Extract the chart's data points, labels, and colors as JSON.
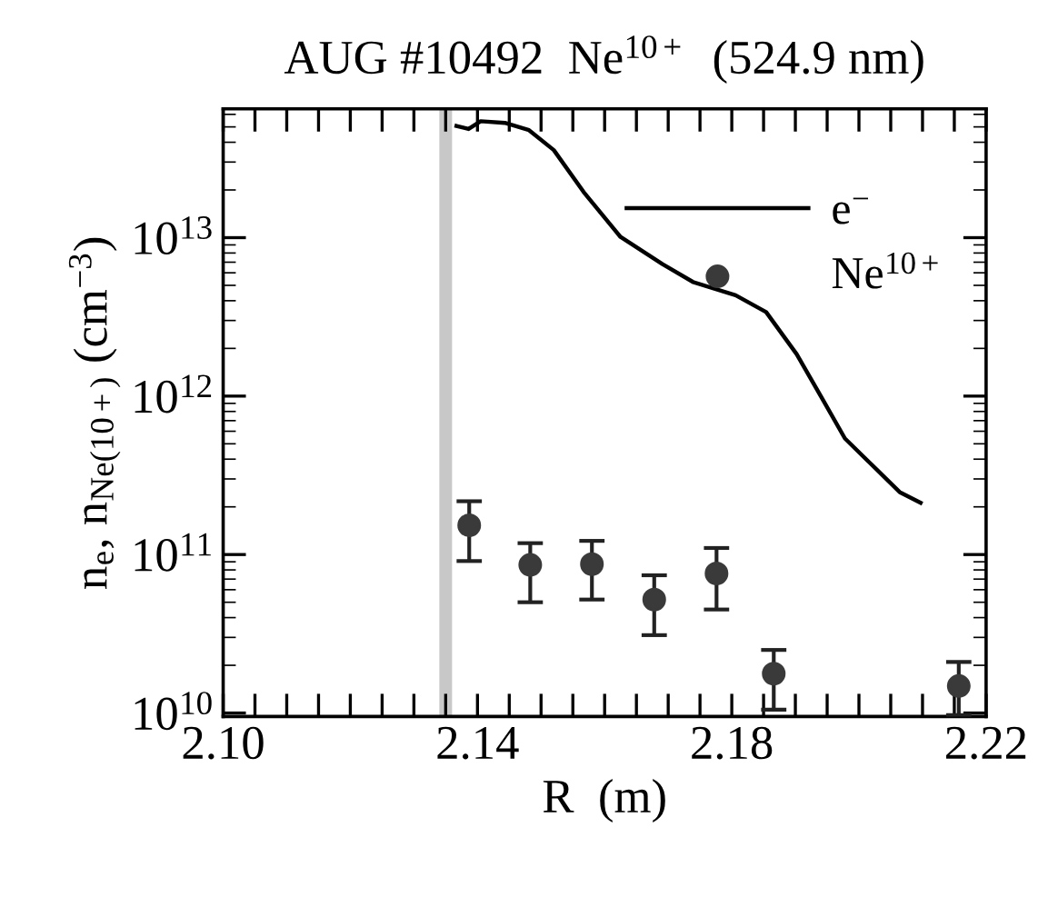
{
  "chart_data": {
    "type": "line",
    "title": "AUG #10492  Ne$^{10+}$  (524.9 nm)",
    "xlabel": "R  (m)",
    "ylabel": "n$_{e}$, n$_{Ne(10+)}$ (cm$^{−3}$)",
    "log": "y",
    "xlim": [
      2.1,
      2.22
    ],
    "ylim": [
      9500000000.0,
      65000000000000.0
    ],
    "xticks": [
      {
        "value": 2.1,
        "label": "2.10"
      },
      {
        "value": 2.105,
        "label": null
      },
      {
        "value": 2.11,
        "label": null
      },
      {
        "value": 2.115,
        "label": null
      },
      {
        "value": 2.12,
        "label": null
      },
      {
        "value": 2.125,
        "label": null
      },
      {
        "value": 2.13,
        "label": null
      },
      {
        "value": 2.135,
        "label": null
      },
      {
        "value": 2.14,
        "label": "2.14"
      },
      {
        "value": 2.145,
        "label": null
      },
      {
        "value": 2.15,
        "label": null
      },
      {
        "value": 2.155,
        "label": null
      },
      {
        "value": 2.16,
        "label": null
      },
      {
        "value": 2.165,
        "label": null
      },
      {
        "value": 2.17,
        "label": null
      },
      {
        "value": 2.175,
        "label": null
      },
      {
        "value": 2.18,
        "label": "2.18"
      },
      {
        "value": 2.185,
        "label": null
      },
      {
        "value": 2.19,
        "label": null
      },
      {
        "value": 2.195,
        "label": null
      },
      {
        "value": 2.2,
        "label": null
      },
      {
        "value": 2.205,
        "label": null
      },
      {
        "value": 2.21,
        "label": null
      },
      {
        "value": 2.215,
        "label": null
      },
      {
        "value": 2.22,
        "label": "2.22"
      }
    ],
    "yticks": [
      {
        "value": 10000000000.0,
        "label": "10$^{10}$"
      },
      {
        "value": 100000000000.0,
        "label": "10$^{11}$"
      },
      {
        "value": 1000000000000.0,
        "label": "10$^{12}$"
      },
      {
        "value": 10000000000000.0,
        "label": "10$^{13}$"
      }
    ],
    "legend": "top right",
    "grid": false,
    "bands": [
      {
        "axis": "x",
        "from": 2.134,
        "to": 2.136,
        "color": "#c8c8c8"
      }
    ],
    "series": [
      {
        "name": "e$^{−}$",
        "color": "#000000",
        "marker": "none",
        "line_style": "solid",
        "x": [
          2.1367,
          2.1386,
          2.1405,
          2.1443,
          2.1481,
          2.152,
          2.1567,
          2.1625,
          2.1691,
          2.1739,
          2.1806,
          2.1854,
          2.1902,
          2.194,
          2.1978,
          2.2016,
          2.2064,
          2.2097
        ],
        "values": [
          50700000000000.0,
          48500000000000.0,
          54300000000000.0,
          53000000000000.0,
          47700000000000.0,
          35700000000000.0,
          19400000000000.0,
          10100000000000.0,
          6800000000000.0,
          5250000000000.0,
          4330000000000.0,
          3390000000000.0,
          1840000000000.0,
          1000000000000.0,
          540000000000.0,
          383000000000.0,
          248000000000.0,
          212000000000.0
        ]
      },
      {
        "name": "Ne$^{10+}$",
        "type": "scatter",
        "color": "#3a3a3a",
        "marker": "circle",
        "x": [
          2.1387,
          2.1483,
          2.158,
          2.1678,
          2.1776,
          2.1866,
          2.2157
        ],
        "values": [
          153000000000.0,
          86000000000.0,
          87000000000.0,
          52000000000.0,
          76000000000.0,
          17700000000.0,
          14800000000.0
        ],
        "errors": [
          [
            91000000000.0,
            217000000000.0
          ],
          [
            50000000000.0,
            118000000000.0
          ],
          [
            52000000000.0,
            122000000000.0
          ],
          [
            31000000000.0,
            74000000000.0
          ],
          [
            45000000000.0,
            110000000000.0
          ],
          [
            10500000000.0,
            25000000000.0
          ],
          [
            9700000000.0,
            21000000000.0
          ]
        ]
      }
    ]
  }
}
